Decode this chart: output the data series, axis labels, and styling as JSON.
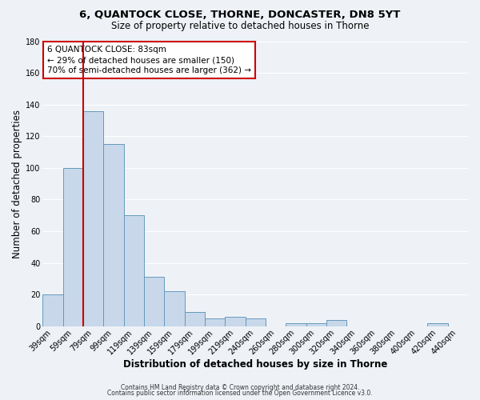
{
  "title": "6, QUANTOCK CLOSE, THORNE, DONCASTER, DN8 5YT",
  "subtitle": "Size of property relative to detached houses in Thorne",
  "xlabel": "Distribution of detached houses by size in Thorne",
  "ylabel": "Number of detached properties",
  "bar_labels": [
    "39sqm",
    "59sqm",
    "79sqm",
    "99sqm",
    "119sqm",
    "139sqm",
    "159sqm",
    "179sqm",
    "199sqm",
    "219sqm",
    "240sqm",
    "260sqm",
    "280sqm",
    "300sqm",
    "320sqm",
    "340sqm",
    "360sqm",
    "380sqm",
    "400sqm",
    "420sqm",
    "440sqm"
  ],
  "bar_heights": [
    20,
    100,
    136,
    115,
    70,
    31,
    22,
    9,
    5,
    6,
    5,
    0,
    2,
    2,
    4,
    0,
    0,
    0,
    0,
    2,
    0
  ],
  "bar_color": "#c8d8ea",
  "bar_edge_color": "#6699bb",
  "ylim": [
    0,
    180
  ],
  "yticks": [
    0,
    20,
    40,
    60,
    80,
    100,
    120,
    140,
    160,
    180
  ],
  "vline_index": 2,
  "vline_color": "#cc0000",
  "annotation_title": "6 QUANTOCK CLOSE: 83sqm",
  "annotation_line1": "← 29% of detached houses are smaller (150)",
  "annotation_line2": "70% of semi-detached houses are larger (362) →",
  "annotation_box_facecolor": "#ffffff",
  "annotation_box_edgecolor": "#cc0000",
  "footer1": "Contains HM Land Registry data © Crown copyright and database right 2024.",
  "footer2": "Contains public sector information licensed under the Open Government Licence v3.0.",
  "bg_color": "#eef2f7",
  "grid_color": "#ffffff",
  "title_fontsize": 9.5,
  "subtitle_fontsize": 8.5,
  "tick_fontsize": 7,
  "axis_label_fontsize": 8.5,
  "annotation_fontsize": 7.5,
  "footer_fontsize": 5.5
}
